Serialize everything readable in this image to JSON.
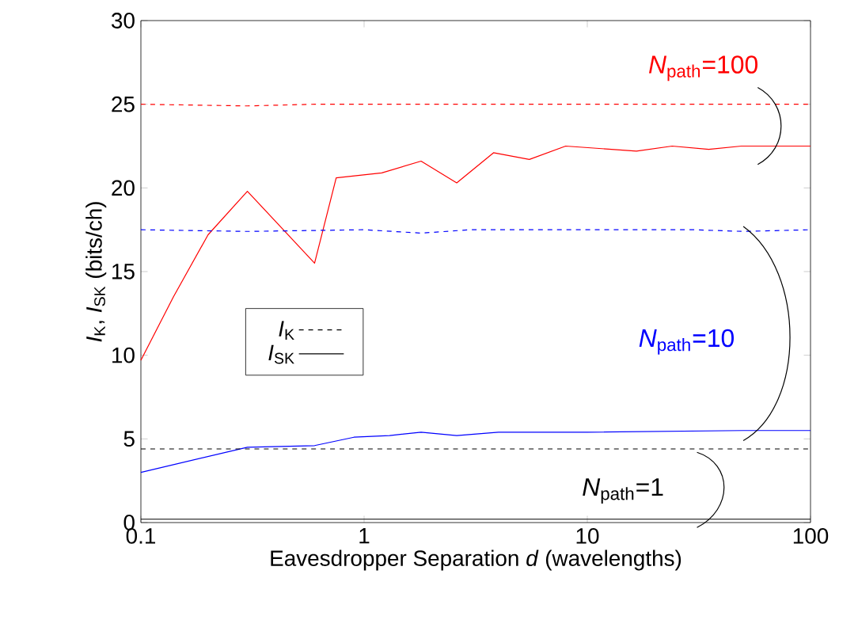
{
  "chart_data": {
    "type": "line",
    "xlabel": "Eavesdropper Separation *d* (wavelengths)",
    "ylabel": "*I*$_{K}$, *I*$_{SK}$ (bits/ch)",
    "log": "x",
    "xlim": [
      0.1,
      100
    ],
    "ylim": [
      0,
      30
    ],
    "xticks": [
      0.1,
      1,
      10,
      100
    ],
    "yticks": [
      0,
      5,
      10,
      15,
      20,
      25,
      30
    ],
    "grid": false,
    "legend": "left",
    "marker": "none",
    "series": [
      {
        "color": "#ff0000",
        "line_style": "dashed",
        "x": [
          0.1,
          0.3,
          0.6,
          1,
          3,
          10,
          30,
          100
        ],
        "values": [
          25,
          24.9,
          25,
          25,
          25,
          25,
          25,
          25
        ]
      },
      {
        "color": "#ff0000",
        "line_style": "solid",
        "x": [
          0.1,
          0.14,
          0.2,
          0.3,
          0.6,
          0.75,
          1.2,
          1.8,
          2.6,
          3.8,
          5.5,
          8,
          16.6,
          24,
          35,
          49,
          100
        ],
        "values": [
          9.7,
          13.5,
          17.2,
          19.8,
          15.5,
          20.6,
          20.9,
          21.6,
          20.3,
          22.1,
          21.7,
          22.5,
          22.2,
          22.5,
          22.3,
          22.5,
          22.5
        ]
      },
      {
        "color": "#0000ff",
        "line_style": "dashed",
        "x": [
          0.1,
          0.3,
          1,
          1.8,
          3,
          10,
          30,
          50,
          100
        ],
        "values": [
          17.5,
          17.4,
          17.5,
          17.3,
          17.5,
          17.5,
          17.5,
          17.4,
          17.5
        ]
      },
      {
        "color": "#0000ff",
        "line_style": "solid",
        "x": [
          0.1,
          0.3,
          0.6,
          0.9,
          1.3,
          1.8,
          2.6,
          4,
          10,
          50,
          100
        ],
        "values": [
          3.0,
          4.5,
          4.6,
          5.1,
          5.2,
          5.4,
          5.2,
          5.4,
          5.4,
          5.5,
          5.5
        ]
      },
      {
        "name": "*I*$_{K}$",
        "color": "#000000",
        "line_style": "dashed",
        "x": [
          0.1,
          100
        ],
        "values": [
          4.4,
          4.4
        ]
      },
      {
        "name": "*I*$_{SK}$",
        "color": "#000000",
        "line_style": "solid",
        "x": [
          0.1,
          100
        ],
        "values": [
          0.2,
          0.2
        ]
      }
    ],
    "annotations": [
      "*N*$_{path}$=100",
      "*N*$_{path}$=10",
      "*N*$_{path}$=1"
    ]
  }
}
